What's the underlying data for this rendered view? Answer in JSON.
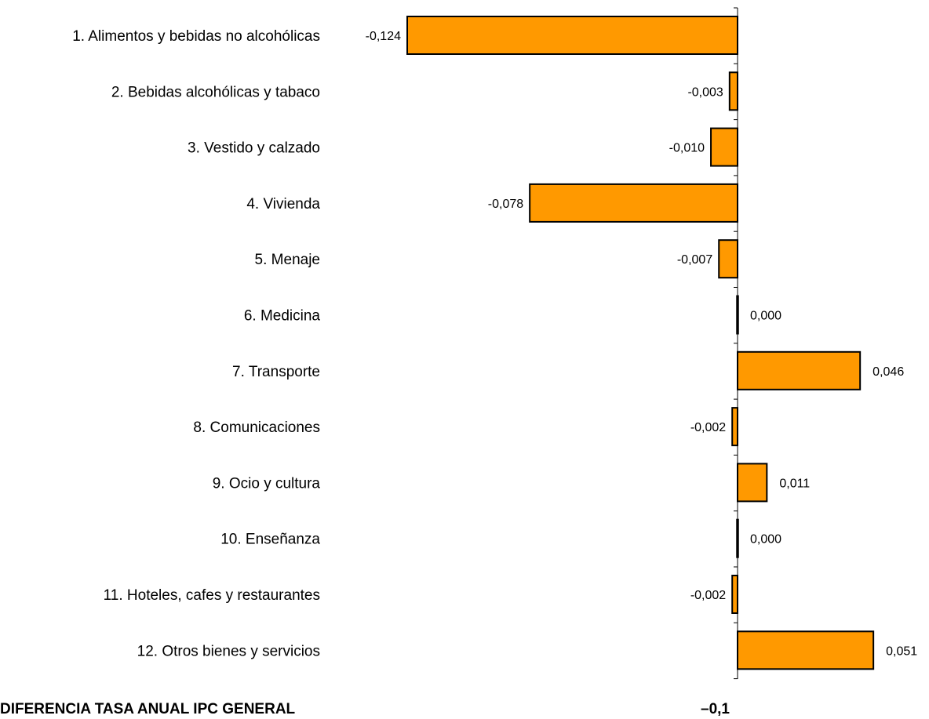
{
  "chart_data": {
    "type": "bar",
    "orientation": "horizontal",
    "categories": [
      "1. Alimentos y bebidas no alcohólicas",
      "2. Bebidas alcohólicas y tabaco",
      "3. Vestido y calzado",
      "4. Vivienda",
      "5. Menaje",
      "6. Medicina",
      "7. Transporte",
      "8. Comunicaciones",
      "9. Ocio y cultura",
      "10. Enseñanza",
      "11. Hoteles, cafes y restaurantes",
      "12. Otros bienes y servicios"
    ],
    "values": [
      -0.124,
      -0.003,
      -0.01,
      -0.078,
      -0.007,
      0.0,
      0.046,
      -0.002,
      0.011,
      0.0,
      -0.002,
      0.051
    ],
    "value_labels": [
      "-0,124",
      "-0,003",
      "-0,010",
      "-0,078",
      "-0,007",
      "0,000",
      "0,046",
      "-0,002",
      "0,011",
      "0,000",
      "-0,002",
      "0,051"
    ],
    "xlim": [
      -0.124,
      0.051
    ],
    "grid": false,
    "legend": "none",
    "bar_color": "#FF9900",
    "bar_edge_color": "#000000"
  },
  "footer": {
    "label": "DIFERENCIA TASA ANUAL IPC GENERAL",
    "value": "–0,1"
  }
}
